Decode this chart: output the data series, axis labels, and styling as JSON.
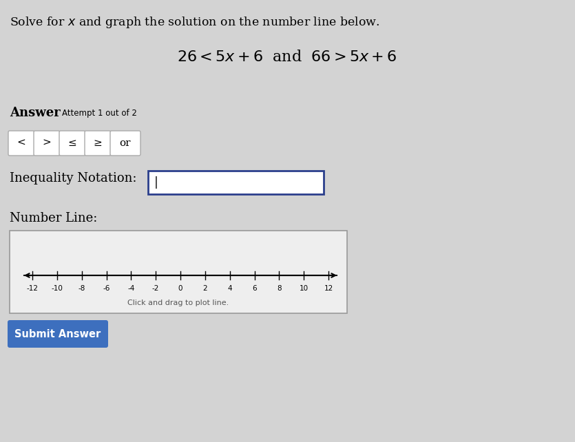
{
  "bg_color": "#d3d3d3",
  "title_text": "Solve for $x$ and graph the solution on the number line below.",
  "equation_text": "$26 < 5x + 6$  and  $66 > 5x + 6$",
  "answer_label": "Answer",
  "attempt_text": "Attempt 1 out of 2",
  "buttons": [
    "<",
    ">",
    "≤",
    "≥",
    "or"
  ],
  "inequality_label": "Inequality Notation:",
  "number_line_label": "Number Line:",
  "number_line_ticks": [
    -12,
    -10,
    -8,
    -6,
    -4,
    -2,
    0,
    2,
    4,
    6,
    8,
    10,
    12
  ],
  "number_line_hint": "Click and drag to plot line.",
  "submit_text": "Submit Answer",
  "submit_bg": "#3d6fbe",
  "submit_text_color": "#ffffff",
  "box_border_color": "#2b3f8c",
  "button_border_color": "#aaaaaa",
  "number_line_box_bg": "#eeeeee",
  "number_line_box_border": "#999999",
  "title_fontsize": 12.5,
  "eq_fontsize": 16,
  "label_fontsize": 13,
  "button_fontsize": 11,
  "tick_fontsize": 7.5
}
